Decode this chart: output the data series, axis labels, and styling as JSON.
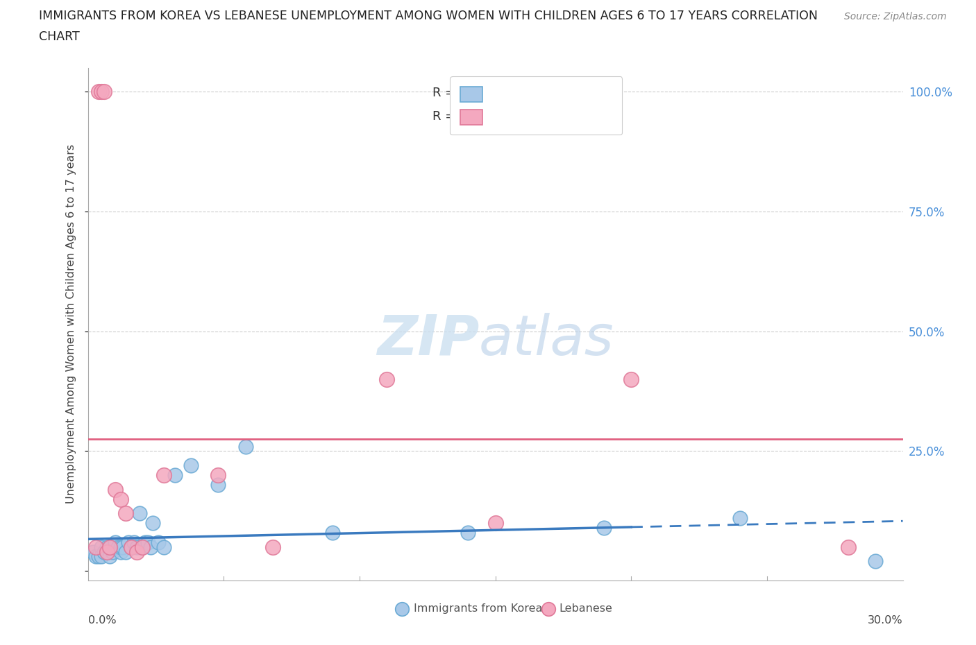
{
  "title_line1": "IMMIGRANTS FROM KOREA VS LEBANESE UNEMPLOYMENT AMONG WOMEN WITH CHILDREN AGES 6 TO 17 YEARS CORRELATION",
  "title_line2": "CHART",
  "source": "Source: ZipAtlas.com",
  "ylabel": "Unemployment Among Women with Children Ages 6 to 17 years",
  "xlim": [
    0.0,
    0.3
  ],
  "ylim": [
    -0.02,
    1.05
  ],
  "korea_color": "#a8c8e8",
  "lebanese_color": "#f4a8bf",
  "korea_edge": "#6aaad4",
  "lebanese_edge": "#e07898",
  "trend_korea_color": "#3a7abf",
  "trend_lebanese_color": "#e06080",
  "watermark_zip": "ZIP",
  "watermark_atlas": "atlas",
  "background_color": "#ffffff",
  "grid_color": "#cccccc",
  "ytick_color": "#4a90d9",
  "korea_x": [
    0.002,
    0.003,
    0.004,
    0.005,
    0.005,
    0.006,
    0.007,
    0.007,
    0.008,
    0.008,
    0.009,
    0.01,
    0.01,
    0.011,
    0.012,
    0.012,
    0.013,
    0.014,
    0.015,
    0.016,
    0.017,
    0.018,
    0.019,
    0.02,
    0.021,
    0.022,
    0.023,
    0.024,
    0.026,
    0.028,
    0.032,
    0.038,
    0.048,
    0.058,
    0.09,
    0.14,
    0.19,
    0.24,
    0.29
  ],
  "korea_y": [
    0.04,
    0.03,
    0.03,
    0.05,
    0.03,
    0.04,
    0.05,
    0.04,
    0.03,
    0.05,
    0.04,
    0.05,
    0.06,
    0.05,
    0.04,
    0.05,
    0.05,
    0.04,
    0.06,
    0.05,
    0.06,
    0.05,
    0.12,
    0.05,
    0.06,
    0.06,
    0.05,
    0.1,
    0.06,
    0.05,
    0.2,
    0.22,
    0.18,
    0.26,
    0.08,
    0.08,
    0.09,
    0.11,
    0.02
  ],
  "lebanese_x": [
    0.003,
    0.004,
    0.005,
    0.006,
    0.007,
    0.008,
    0.01,
    0.012,
    0.014,
    0.016,
    0.018,
    0.02,
    0.028,
    0.048,
    0.068,
    0.11,
    0.15,
    0.2,
    0.28
  ],
  "lebanese_y": [
    0.05,
    1.0,
    1.0,
    1.0,
    0.04,
    0.05,
    0.17,
    0.15,
    0.12,
    0.05,
    0.04,
    0.05,
    0.2,
    0.2,
    0.05,
    0.4,
    0.1,
    0.4,
    0.05
  ],
  "trend_lebanese_flat_y": 0.275,
  "korea_trend_x_solid_end": 0.2,
  "korea_trend_x_dash_end": 0.3
}
